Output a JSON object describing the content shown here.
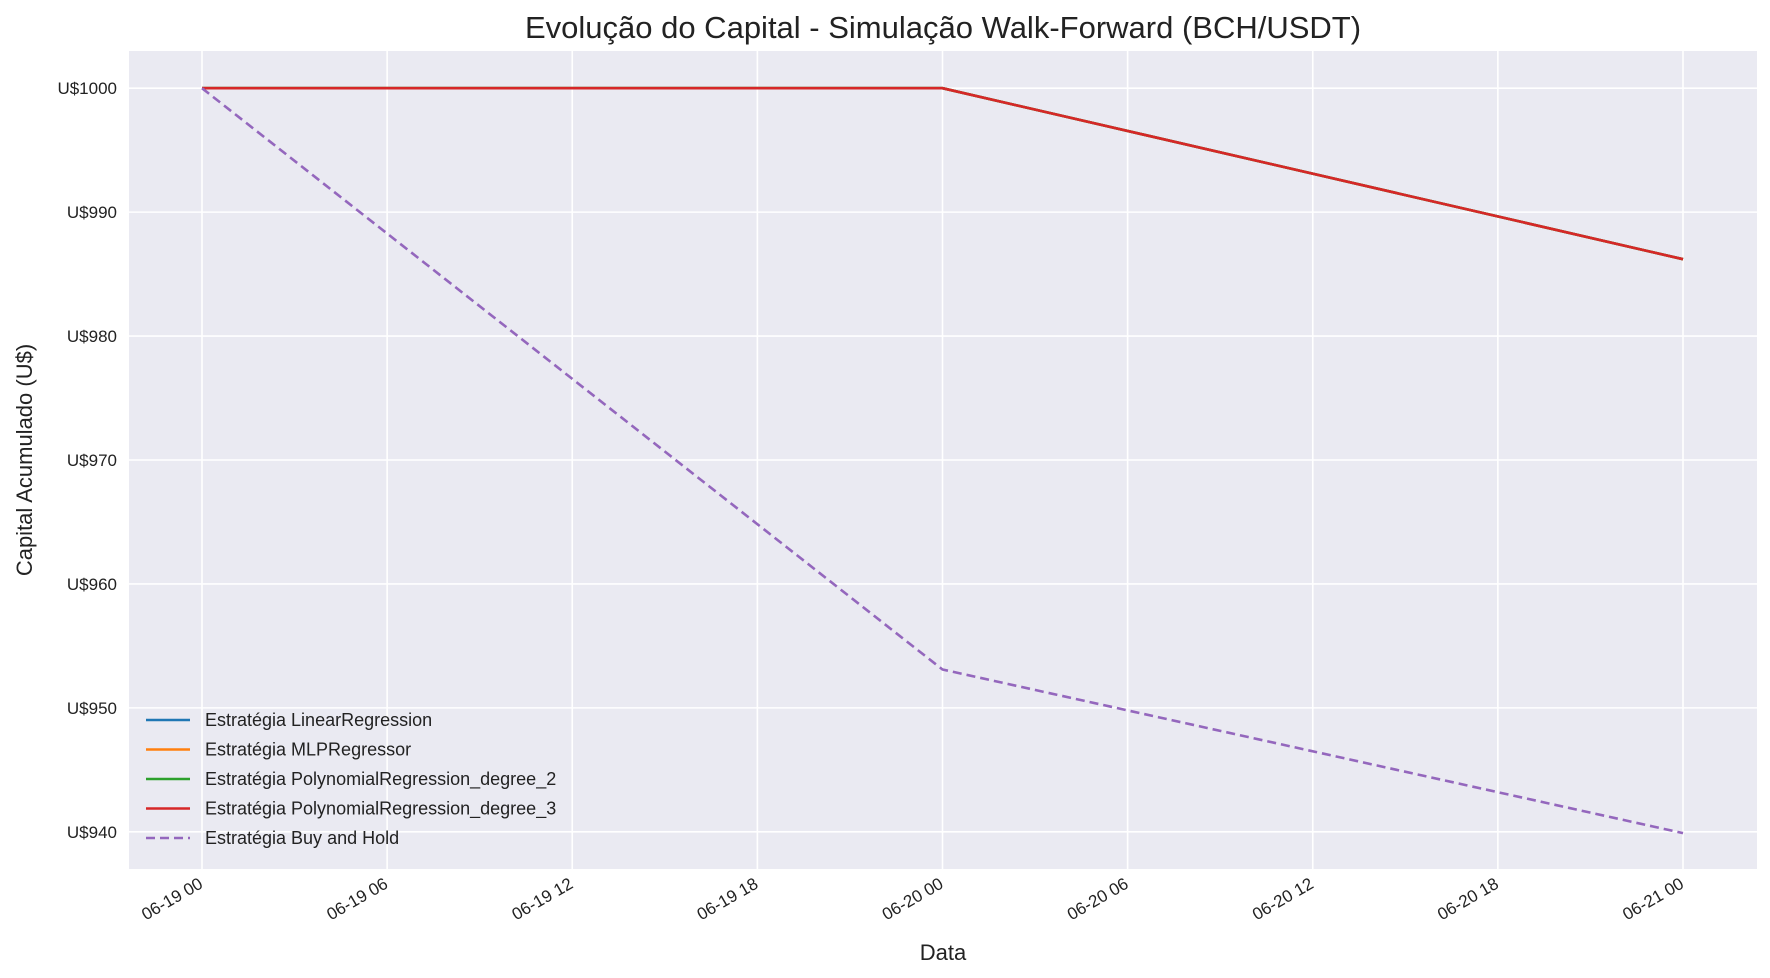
{
  "chart_data": {
    "type": "line",
    "title": "Evolução do Capital - Simulação Walk-Forward (BCH/USDT)",
    "xlabel": "Data",
    "ylabel": "Capital Acumulado (U$)",
    "x": [
      "2024-06-19 00:00",
      "2024-06-20 00:00",
      "2024-06-21 00:00"
    ],
    "x_ticks": [
      "06-19 00",
      "06-19 06",
      "06-19 12",
      "06-19 18",
      "06-20 00",
      "06-20 06",
      "06-20 12",
      "06-20 18",
      "06-21 00"
    ],
    "y_ticks": [
      "U$940",
      "U$950",
      "U$960",
      "U$970",
      "U$980",
      "U$990",
      "U$1000"
    ],
    "ylim": [
      937,
      1003
    ],
    "grid": true,
    "legend_position": "lower-left",
    "series": [
      {
        "name": "Estratégia LinearRegression",
        "color": "#1f77b4",
        "dash": false,
        "values": [
          1000,
          1000,
          986.2
        ]
      },
      {
        "name": "Estratégia MLPRegressor",
        "color": "#ff7f0e",
        "dash": false,
        "values": [
          1000,
          1000,
          986.2
        ]
      },
      {
        "name": "Estratégia PolynomialRegression_degree_2",
        "color": "#2ca02c",
        "dash": false,
        "values": [
          1000,
          1000,
          986.2
        ]
      },
      {
        "name": "Estratégia PolynomialRegression_degree_3",
        "color": "#d62728",
        "dash": false,
        "values": [
          1000,
          1000,
          986.2
        ]
      },
      {
        "name": "Estratégia Buy and Hold",
        "color": "#9467bd",
        "dash": true,
        "values": [
          1000,
          953.1,
          939.9
        ]
      }
    ]
  }
}
